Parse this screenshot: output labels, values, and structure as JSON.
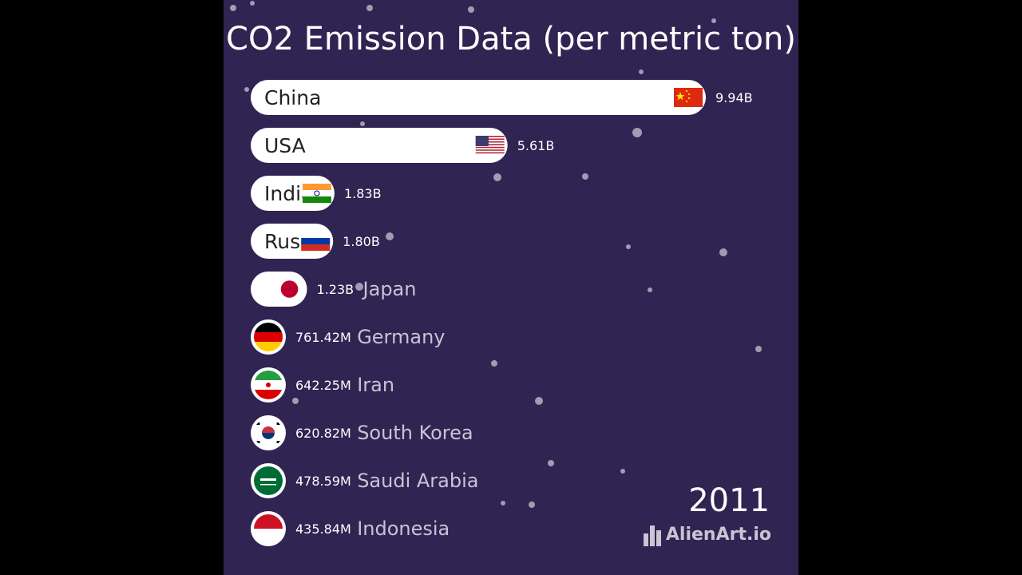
{
  "chart_data": {
    "type": "bar",
    "title": "CO2 Emission Data (per metric ton)",
    "year": "2011",
    "categories": [
      "China",
      "USA",
      "India",
      "Russia",
      "Japan",
      "Germany",
      "Iran",
      "South Korea",
      "Saudi Arabia",
      "Indonesia"
    ],
    "values": [
      9940000000,
      5610000000,
      1830000000,
      1800000000,
      1230000000,
      761420000,
      642250000,
      620820000,
      478590000,
      435840000
    ],
    "value_labels": [
      "9.94B",
      "5.61B",
      "1.83B",
      "1.80B",
      "1.23B",
      "761.42M",
      "642.25M",
      "620.82M",
      "478.59M",
      "435.84M"
    ],
    "flags": [
      "china-flag-icon",
      "usa-flag-icon",
      "india-flag-icon",
      "russia-flag-icon",
      "japan-flag-icon",
      "germany-flag-icon",
      "iran-flag-icon",
      "south-korea-flag-icon",
      "saudi-arabia-flag-icon",
      "indonesia-flag-icon"
    ],
    "colors": {
      "background": "#2f2452",
      "bar": "#ffffff",
      "label": "#ffffff",
      "outside_name": "#c8c4d6"
    }
  },
  "watermark": "AlienArt.io"
}
